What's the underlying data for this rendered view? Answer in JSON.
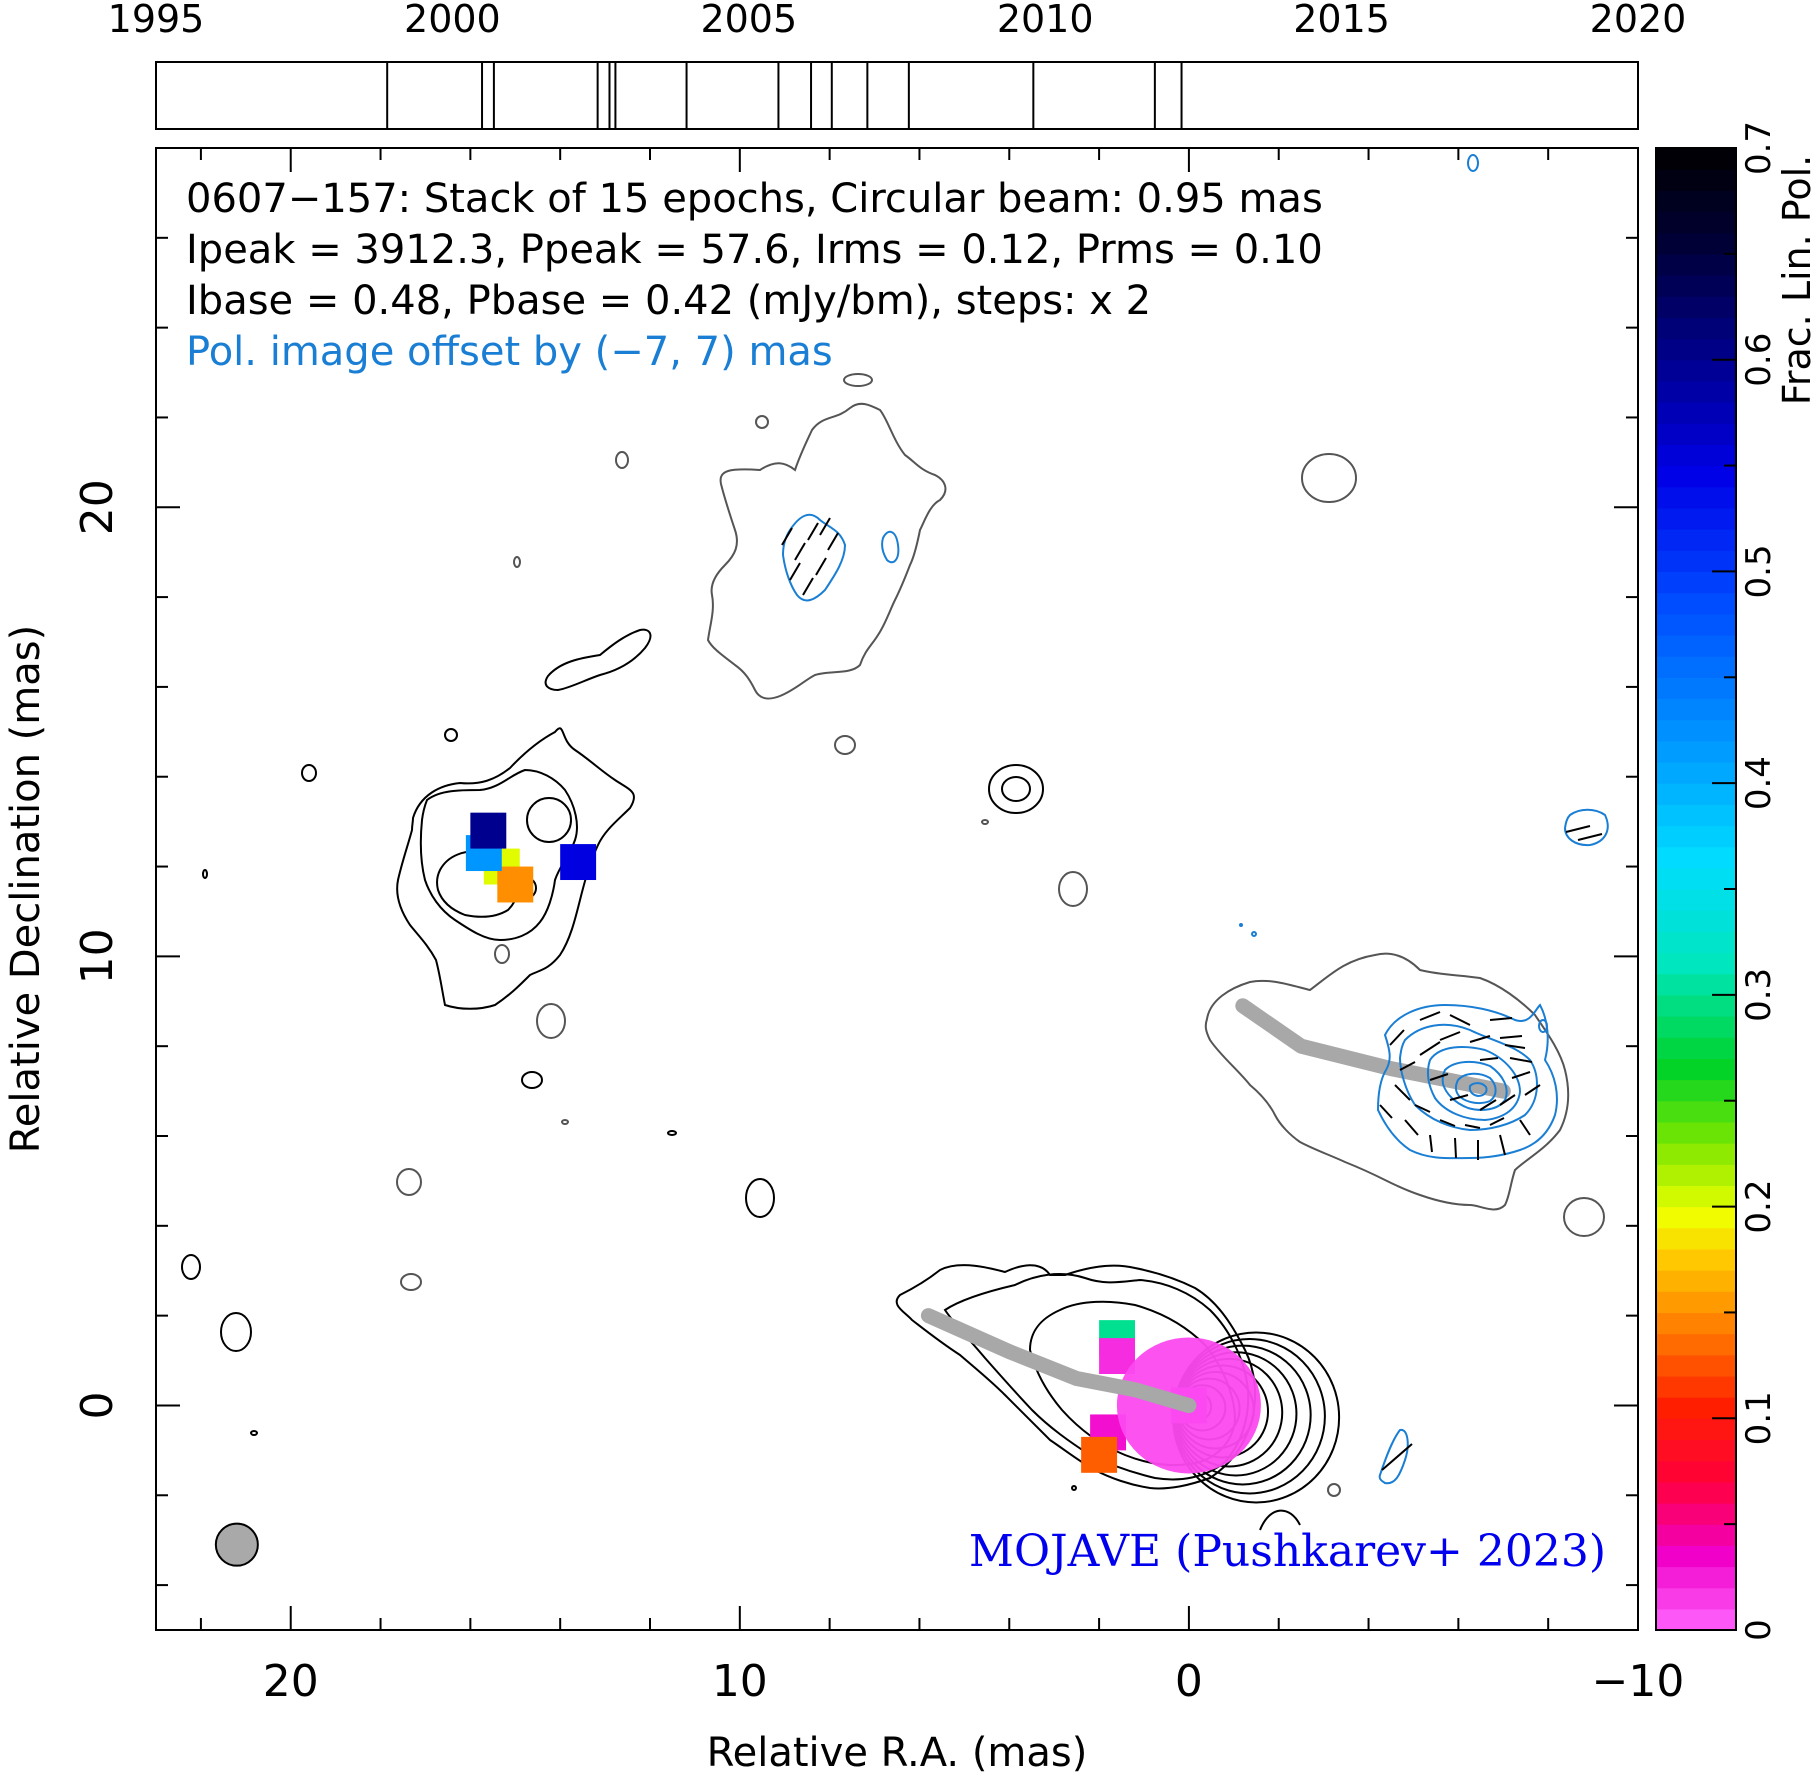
{
  "chart_data": {
    "type": "contour",
    "source": "0607−157",
    "header_lines": [
      "0607−157: Stack of 15 epochs, Circular beam: 0.95 mas",
      "Ipeak = 3912.3, Ppeak = 57.6, Irms = 0.12, Prms = 0.10",
      "Ibase = 0.48, Pbase = 0.42 (mJy/bm), steps: x 2"
    ],
    "pol_offset_note": "Pol. image offset by (−7, 7) mas",
    "credit": "MOJAVE (Pushkarev+ 2023)",
    "xlabel": "Relative R.A. (mas)",
    "ylabel": "Relative Declination (mas)",
    "xlim": [
      23.0,
      -10.0
    ],
    "ylim": [
      -5.0,
      28.0
    ],
    "x_ticks": [
      20,
      10,
      0,
      -10
    ],
    "x_tick_labels": [
      "20",
      "10",
      "0",
      "−10"
    ],
    "y_ticks": [
      0,
      10,
      20
    ],
    "y_tick_labels": [
      "0",
      "10",
      "20"
    ],
    "epoch_axis": {
      "range": [
        1995,
        2020
      ],
      "tick_years": [
        1995,
        2000,
        2005,
        2010,
        2015,
        2020
      ],
      "tick_labels": [
        "1995",
        "2000",
        "2005",
        "2010",
        "2015",
        "2020"
      ],
      "epochs": [
        1998.9,
        2000.5,
        2000.7,
        2002.45,
        2002.65,
        2002.75,
        2003.95,
        2005.5,
        2006.05,
        2006.4,
        2007.0,
        2007.7,
        2009.8,
        2011.85,
        2012.3
      ]
    },
    "colorbar": {
      "label": "Frac. Lin. Pol.",
      "range": [
        0,
        0.7
      ],
      "ticks": [
        0,
        0.1,
        0.2,
        0.3,
        0.4,
        0.5,
        0.6,
        0.7
      ],
      "tick_labels": [
        "0",
        "0.1",
        "0.2",
        "0.3",
        "0.4",
        "0.5",
        "0.6",
        "0.7"
      ]
    },
    "beam": {
      "ra": 21.2,
      "dec": -3.1,
      "diameter_mas": 0.95
    },
    "ridge_lines": [
      {
        "name": "total intensity ridge",
        "points": [
          [
            5.8,
            2.0
          ],
          [
            4.0,
            1.2
          ],
          [
            2.5,
            0.6
          ],
          [
            1.2,
            0.35
          ],
          [
            0.0,
            0.0
          ]
        ]
      },
      {
        "name": "offset pol ridge",
        "points": [
          [
            -1.2,
            8.9
          ],
          [
            -2.5,
            8.0
          ],
          [
            -4.5,
            7.5
          ],
          [
            -6.0,
            7.2
          ],
          [
            -7.0,
            7.0
          ]
        ]
      }
    ],
    "color_patches": [
      {
        "ra": 15.3,
        "dec": 12.0,
        "frac_pol": 0.2
      },
      {
        "ra": 15.0,
        "dec": 11.6,
        "frac_pol": 0.15
      },
      {
        "ra": 15.7,
        "dec": 12.3,
        "frac_pol": 0.42
      },
      {
        "ra": 15.6,
        "dec": 12.8,
        "frac_pol": 0.6
      },
      {
        "ra": 13.6,
        "dec": 12.1,
        "frac_pol": 0.55
      },
      {
        "ra": 0.0,
        "dec": 0.0,
        "frac_pol": 0.01
      },
      {
        "ra": 1.6,
        "dec": 1.5,
        "frac_pol": 0.3
      },
      {
        "ra": 1.6,
        "dec": 1.1,
        "frac_pol": 0.02
      },
      {
        "ra": 1.8,
        "dec": -0.6,
        "frac_pol": 0.03
      },
      {
        "ra": 2.0,
        "dec": -1.1,
        "frac_pol": 0.13
      }
    ],
    "contour_groups": [
      {
        "kind": "core_I",
        "ra": 0.0,
        "dec": 0.0,
        "levels": 11
      },
      {
        "kind": "knot_I",
        "ra": 14.8,
        "dec": 11.9,
        "levels": 4
      },
      {
        "kind": "pol_P",
        "ra": -7.0,
        "dec": 7.0,
        "levels": 6
      }
    ]
  }
}
